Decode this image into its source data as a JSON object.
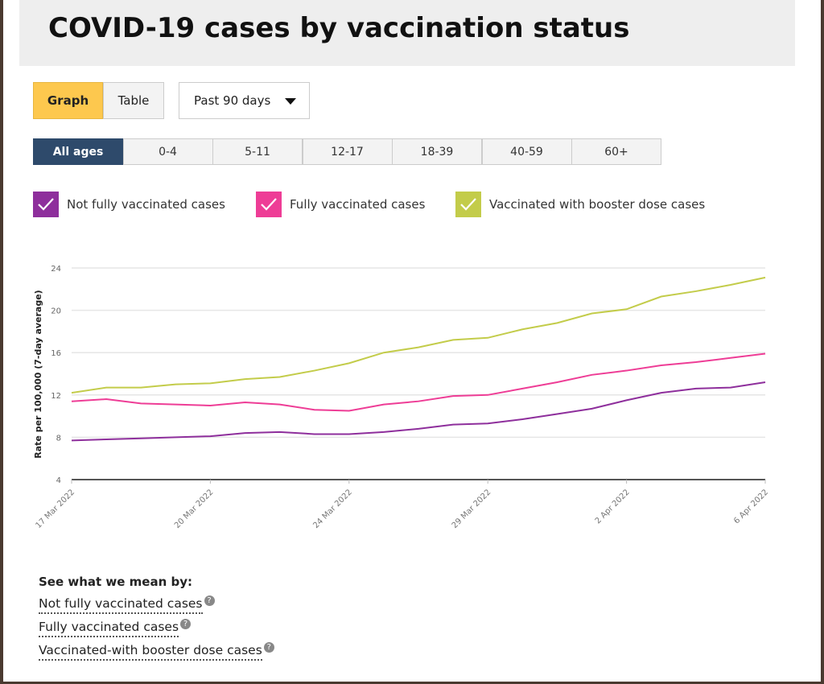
{
  "title": "COVID-19 cases by vaccination status",
  "view_tabs": [
    {
      "label": "Graph",
      "active": true
    },
    {
      "label": "Table",
      "active": false
    }
  ],
  "period_dropdown": {
    "selected": "Past 90 days"
  },
  "age_tabs": [
    "All ages",
    "0-4",
    "5-11",
    "12-17",
    "18-39",
    "40-59",
    "60+"
  ],
  "legend": [
    {
      "label": "Not fully vaccinated cases",
      "color": "#8e2f9c"
    },
    {
      "label": "Fully vaccinated cases",
      "color": "#ee3d96"
    },
    {
      "label": "Vaccinated with booster dose cases",
      "color": "#c3cc4a"
    }
  ],
  "chart_data": {
    "type": "line",
    "ylabel": "Rate per 100,000 (7-day average)",
    "ylim": [
      4,
      24
    ],
    "yticks": [
      4,
      8,
      12,
      16,
      20,
      24
    ],
    "xtick_labels": [
      {
        "index": 0,
        "label": "17 Mar 2022"
      },
      {
        "index": 4,
        "label": "20 Mar 2022"
      },
      {
        "index": 8,
        "label": "24 Mar 2022"
      },
      {
        "index": 12,
        "label": "29 Mar 2022"
      },
      {
        "index": 16,
        "label": "2 Apr 2022"
      },
      {
        "index": 20,
        "label": "6 Apr 2022"
      }
    ],
    "series": [
      {
        "name": "Not fully vaccinated cases",
        "color": "#8e2f9c",
        "values": [
          7.7,
          7.8,
          7.9,
          8.0,
          8.1,
          8.4,
          8.5,
          8.3,
          8.3,
          8.5,
          8.8,
          9.2,
          9.3,
          9.7,
          10.2,
          10.7,
          11.5,
          12.2,
          12.6,
          12.7,
          13.2
        ]
      },
      {
        "name": "Fully vaccinated cases",
        "color": "#ee3d96",
        "values": [
          11.4,
          11.6,
          11.2,
          11.1,
          11.0,
          11.3,
          11.1,
          10.6,
          10.5,
          11.1,
          11.4,
          11.9,
          12.0,
          12.6,
          13.2,
          13.9,
          14.3,
          14.8,
          15.1,
          15.5,
          15.9
        ]
      },
      {
        "name": "Vaccinated with booster dose cases",
        "color": "#c3cc4a",
        "values": [
          12.2,
          12.7,
          12.7,
          13.0,
          13.1,
          13.5,
          13.7,
          14.3,
          15.0,
          16.0,
          16.5,
          17.2,
          17.4,
          18.2,
          18.8,
          19.7,
          20.1,
          21.3,
          21.8,
          22.4,
          23.1
        ]
      }
    ]
  },
  "definitions": {
    "title": "See what we mean by:",
    "links": [
      "Not fully vaccinated cases",
      "Fully vaccinated cases",
      "Vaccinated-with booster dose cases"
    ]
  }
}
